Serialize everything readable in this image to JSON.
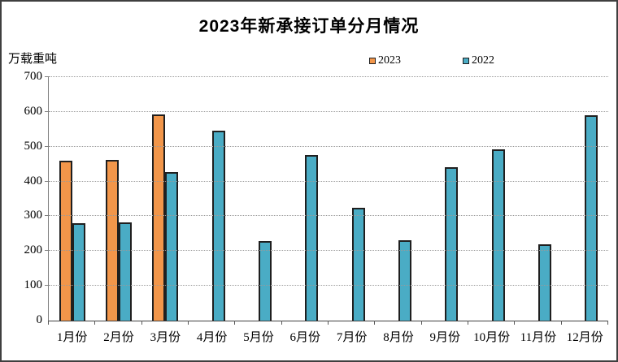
{
  "title": "2023年新承接订单分月情况",
  "y_axis_unit": "万载重吨",
  "legend": {
    "items": [
      {
        "label": "2023",
        "color": "#F2964A"
      },
      {
        "label": "2022",
        "color": "#4AACC5"
      }
    ]
  },
  "colors": {
    "series_2023": "#F2964A",
    "series_2022": "#4AACC5",
    "bar_border": "#1F1F1F",
    "gridline": "#9A9A9A",
    "frame_border": "#3F3F3F"
  },
  "chart_data": {
    "type": "bar",
    "title": "2023年新承接订单分月情况",
    "xlabel": "",
    "ylabel": "万载重吨",
    "categories": [
      "1月份",
      "2月份",
      "3月份",
      "4月份",
      "5月份",
      "6月份",
      "7月份",
      "8月份",
      "9月份",
      "10月份",
      "11月份",
      "12月份"
    ],
    "series": [
      {
        "name": "2023",
        "color": "#F2964A",
        "values": [
          460,
          462,
          593,
          null,
          null,
          null,
          null,
          null,
          null,
          null,
          null,
          null
        ]
      },
      {
        "name": "2022",
        "color": "#4AACC5",
        "values": [
          281,
          283,
          428,
          547,
          229,
          476,
          325,
          232,
          440,
          493,
          220,
          591
        ]
      }
    ],
    "ylim": [
      0,
      700
    ],
    "ytick_interval": 100,
    "yticks": [
      0,
      100,
      200,
      300,
      400,
      500,
      600,
      700
    ],
    "grid": "horizontal-dotted",
    "legend_position": "top-center-right"
  }
}
